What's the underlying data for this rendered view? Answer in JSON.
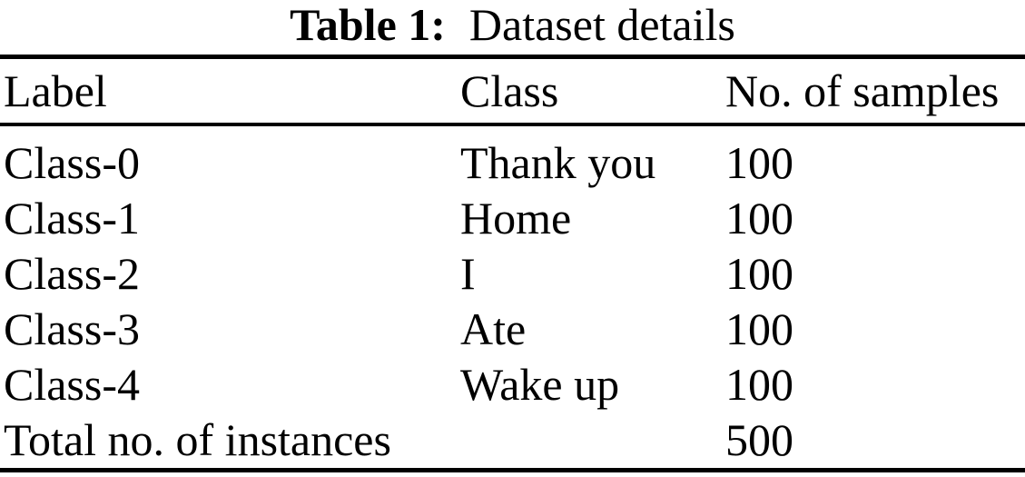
{
  "table": {
    "caption": {
      "label": "Table 1:",
      "title": "Dataset details"
    },
    "columns": {
      "label": "Label",
      "class": "Class",
      "samples": "No. of samples"
    },
    "rows": [
      {
        "label": "Class-0",
        "class": "Thank you",
        "samples": "100"
      },
      {
        "label": "Class-1",
        "class": "Home",
        "samples": "100"
      },
      {
        "label": "Class-2",
        "class": "I",
        "samples": "100"
      },
      {
        "label": "Class-3",
        "class": "Ate",
        "samples": "100"
      },
      {
        "label": "Class-4",
        "class": "Wake up",
        "samples": "100"
      },
      {
        "label": "Total no. of instances",
        "class": "",
        "samples": "500"
      }
    ],
    "colors": {
      "text": "#000000",
      "background": "#ffffff",
      "rule": "#000000"
    }
  }
}
